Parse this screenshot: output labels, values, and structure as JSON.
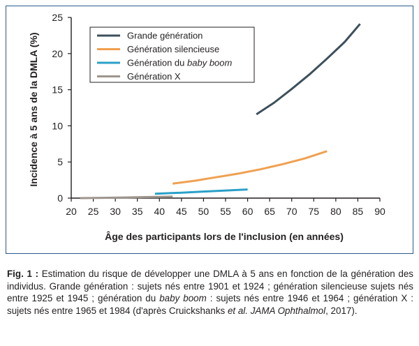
{
  "chart_data": {
    "type": "line",
    "xlabel": "Âge des participants lors de l'inclusion (en années)",
    "ylabel": "Incidence à 5 ans de la DMLA (%)",
    "xlim": [
      20,
      90
    ],
    "ylim": [
      0,
      25
    ],
    "x_ticks": [
      20,
      25,
      30,
      35,
      40,
      45,
      50,
      55,
      60,
      65,
      70,
      75,
      80,
      85,
      90
    ],
    "y_ticks": [
      0,
      5,
      10,
      15,
      20,
      25
    ],
    "grid": false,
    "legend_position": "top-left",
    "series": [
      {
        "name": "Grande génération",
        "color": "#3d4f5c",
        "points": [
          [
            62,
            11.6
          ],
          [
            66,
            13.2
          ],
          [
            70,
            15.1
          ],
          [
            74,
            17.1
          ],
          [
            78,
            19.3
          ],
          [
            82,
            21.6
          ],
          [
            85.5,
            24.1
          ]
        ]
      },
      {
        "name": "Génération silencieuse",
        "color": "#f0a050",
        "points": [
          [
            43,
            2.0
          ],
          [
            48,
            2.4
          ],
          [
            53,
            2.9
          ],
          [
            58,
            3.4
          ],
          [
            63,
            4.0
          ],
          [
            68,
            4.7
          ],
          [
            73,
            5.5
          ],
          [
            78,
            6.5
          ]
        ]
      },
      {
        "name": "Génération du baby boom",
        "name_plain": "Génération du ",
        "name_italic": "baby boom",
        "color": "#2aa0c8",
        "points": [
          [
            39,
            0.6
          ],
          [
            45,
            0.75
          ],
          [
            50,
            0.9
          ],
          [
            55,
            1.05
          ],
          [
            60,
            1.2
          ]
        ]
      },
      {
        "name": "Génération X",
        "color": "#9e958d",
        "points": [
          [
            22,
            0.0
          ],
          [
            27,
            0.04
          ],
          [
            32,
            0.08
          ],
          [
            37,
            0.14
          ],
          [
            43,
            0.2
          ]
        ]
      }
    ]
  },
  "caption": {
    "label": "Fig. 1 :",
    "text_1": " Estimation du risque de développer une DMLA à 5 ans en fonction de la génération des individus. Grande génération : sujets nés entre 1901 et 1924 ; génération silencieuse sujets nés entre 1925 et 1945 ; génération du ",
    "italic_1": "baby boom",
    "text_2": " : sujets nés entre 1946 et 1964 ; génération X : sujets nés entre 1965 et 1984 (d'après Cruickshanks ",
    "italic_2": "et al. JAMA Ophthalmol",
    "text_3": ", 2017)."
  }
}
